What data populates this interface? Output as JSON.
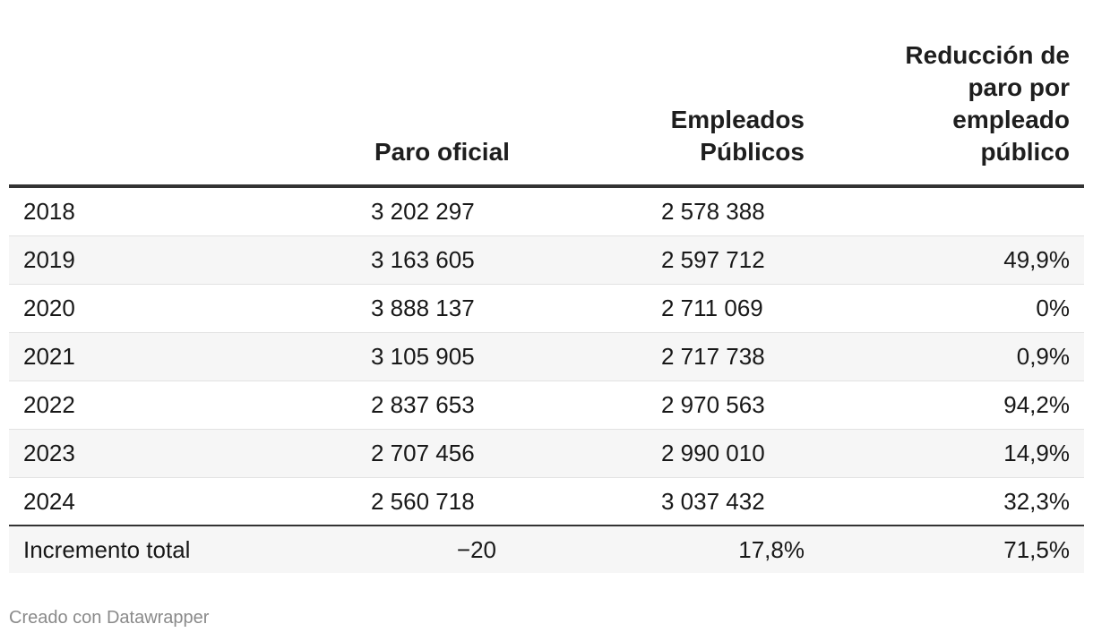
{
  "chart_data": {
    "type": "table",
    "columns": [
      "",
      "Paro oficial",
      "Empleados Públicos",
      "Reducción de paro por empleado público"
    ],
    "header_lines": {
      "paro": [
        "Paro oficial"
      ],
      "empleados": [
        "Empleados",
        "Públicos"
      ],
      "reduccion": [
        "Reducción de",
        "paro por",
        "empleado",
        "público"
      ]
    },
    "rows": [
      {
        "year": "2018",
        "paro": "3 202 297",
        "empleados": "2 578 388",
        "reduccion": ""
      },
      {
        "year": "2019",
        "paro": "3 163 605",
        "empleados": "2 597 712",
        "reduccion": "49,9%"
      },
      {
        "year": "2020",
        "paro": "3 888 137",
        "empleados": "2 711 069",
        "reduccion": "0%"
      },
      {
        "year": "2021",
        "paro": "3 105 905",
        "empleados": "2 717 738",
        "reduccion": "0,9%"
      },
      {
        "year": "2022",
        "paro": "2 837 653",
        "empleados": "2 970 563",
        "reduccion": "94,2%"
      },
      {
        "year": "2023",
        "paro": "2 707 456",
        "empleados": "2 990 010",
        "reduccion": "14,9%"
      },
      {
        "year": "2024",
        "paro": "2 560 718",
        "empleados": "3 037 432",
        "reduccion": "32,3%"
      }
    ],
    "total": {
      "label": "Incremento total",
      "paro": "−20",
      "empleados": "17,8%",
      "reduccion": "71,5%"
    }
  },
  "footer": {
    "credit": "Creado con Datawrapper"
  },
  "colors": {
    "rule": "#333333",
    "stripe": "#f6f6f6",
    "footer_text": "#8a8a8a"
  }
}
